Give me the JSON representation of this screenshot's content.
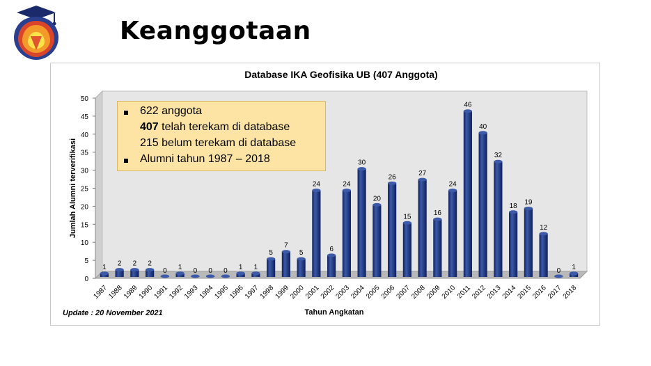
{
  "header": {
    "title": "Keanggotaan",
    "logo_icon": "graduation-cap-shield-logo"
  },
  "note": {
    "line1": "622 anggota",
    "line2_bold": "407",
    "line2_rest": " telah terekam di database",
    "line3": "215 belum terekam di database",
    "line4": "Alumni tahun 1987 – 2018"
  },
  "update_text": "Update : 20 November 2021",
  "chart_data": {
    "type": "bar",
    "title": "Database IKA Geofisika UB (407 Anggota)",
    "xlabel": "Tahun Angkatan",
    "ylabel": "Jumlah Alumni terverifikasi",
    "ylim": [
      0,
      50
    ],
    "yticks": [
      0,
      5,
      10,
      15,
      20,
      25,
      30,
      35,
      40,
      45,
      50
    ],
    "grid": false,
    "categories": [
      "1987",
      "1988",
      "1989",
      "1990",
      "1991",
      "1992",
      "1993",
      "1994",
      "1995",
      "1996",
      "1997",
      "1998",
      "1999",
      "2000",
      "2001",
      "2002",
      "2003",
      "2004",
      "2005",
      "2006",
      "2007",
      "2008",
      "2009",
      "2010",
      "2011",
      "2012",
      "2013",
      "2014",
      "2015",
      "2016",
      "2017",
      "2018"
    ],
    "values": [
      1,
      2,
      2,
      2,
      0,
      1,
      0,
      0,
      0,
      1,
      1,
      5,
      7,
      5,
      24,
      6,
      24,
      30,
      20,
      26,
      15,
      27,
      16,
      24,
      46,
      40,
      32,
      18,
      19,
      12,
      0,
      1
    ],
    "bar_color": "#0f1f5c",
    "bar_highlight": "#3c5aa8",
    "wall_color": "#e6e6e6"
  }
}
